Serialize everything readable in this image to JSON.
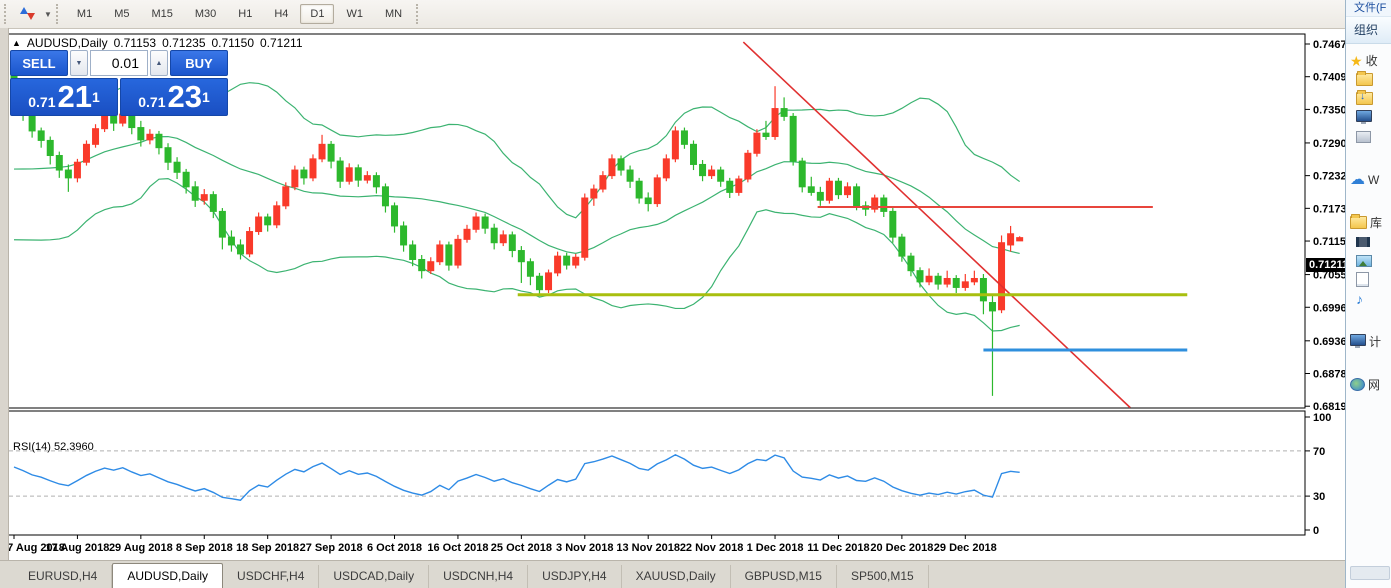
{
  "toolbar": {
    "timeframes": [
      "M1",
      "M5",
      "M15",
      "M30",
      "H1",
      "H4",
      "D1",
      "W1",
      "MN"
    ],
    "active_timeframe": "D1",
    "icon": "order-arrows-icon"
  },
  "chart_title": {
    "marker": "▲",
    "symbol": "AUDUSD,Daily",
    "open": "0.71153",
    "high": "0.71235",
    "low": "0.71150",
    "close": "0.71211"
  },
  "trade_panel": {
    "sell_label": "SELL",
    "buy_label": "BUY",
    "volume": "0.01",
    "sell_price": {
      "prefix": "0.71",
      "big": "21",
      "sup": "1"
    },
    "buy_price": {
      "prefix": "0.71",
      "big": "23",
      "sup": "1"
    }
  },
  "indicator_label": "RSI(14) 52.3960",
  "current_price_label": "0.71211",
  "tabs": [
    {
      "label": "EURUSD,H4",
      "active": false
    },
    {
      "label": "AUDUSD,Daily",
      "active": true
    },
    {
      "label": "USDCHF,H4",
      "active": false
    },
    {
      "label": "USDCAD,Daily",
      "active": false
    },
    {
      "label": "USDCNH,H4",
      "active": false
    },
    {
      "label": "USDJPY,H4",
      "active": false
    },
    {
      "label": "XAUUSD,Daily",
      "active": false
    },
    {
      "label": "GBPUSD,M15",
      "active": false
    },
    {
      "label": "SP500,M15",
      "active": false
    }
  ],
  "explorer": {
    "menu_label": "文件(F",
    "toolbar_label": "组织",
    "sections": [
      {
        "items": [
          {
            "icon": "star",
            "label": "收"
          },
          {
            "icon": "folder",
            "label": "",
            "sub": true
          },
          {
            "icon": "folder-download",
            "label": "",
            "sub": true
          },
          {
            "icon": "monitor",
            "label": "",
            "sub": true
          },
          {
            "icon": "recent",
            "label": "",
            "sub": true
          }
        ]
      },
      {
        "items": [
          {
            "icon": "cloud",
            "label": "W"
          }
        ]
      },
      {
        "items": [
          {
            "icon": "folder",
            "label": "库"
          },
          {
            "icon": "film",
            "label": "",
            "sub": true
          },
          {
            "icon": "picture",
            "label": "",
            "sub": true
          },
          {
            "icon": "document",
            "label": "",
            "sub": true
          },
          {
            "icon": "music",
            "label": "",
            "sub": true
          }
        ]
      },
      {
        "items": [
          {
            "icon": "computer",
            "label": "计"
          }
        ]
      },
      {
        "items": [
          {
            "icon": "network",
            "label": "网"
          }
        ]
      }
    ]
  },
  "chart_data": {
    "type": "candlestick",
    "symbol": "AUDUSD",
    "timeframe": "Daily",
    "title": "AUDUSD,Daily",
    "grid": false,
    "price_ticks": [
      "0.74675",
      "0.74090",
      "0.73505",
      "0.72905",
      "0.72320",
      "0.71735",
      "0.71150",
      "0.70550",
      "0.69965",
      "0.69365",
      "0.68780",
      "0.68195"
    ],
    "rsi_ticks": [
      "100",
      "70",
      "30",
      "0"
    ],
    "date_labels": [
      {
        "label": "7 Aug 2018",
        "bar": 0
      },
      {
        "label": "17 Aug 2018",
        "bar": 7
      },
      {
        "label": "29 Aug 2018",
        "bar": 14
      },
      {
        "label": "8 Sep 2018",
        "bar": 21
      },
      {
        "label": "18 Sep 2018",
        "bar": 28
      },
      {
        "label": "27 Sep 2018",
        "bar": 35
      },
      {
        "label": "6 Oct 2018",
        "bar": 42
      },
      {
        "label": "16 Oct 2018",
        "bar": 49
      },
      {
        "label": "25 Oct 2018",
        "bar": 56
      },
      {
        "label": "3 Nov 2018",
        "bar": 63
      },
      {
        "label": "13 Nov 2018",
        "bar": 70
      },
      {
        "label": "22 Nov 2018",
        "bar": 77
      },
      {
        "label": "1 Dec 2018",
        "bar": 84
      },
      {
        "label": "11 Dec 2018",
        "bar": 91
      },
      {
        "label": "20 Dec 2018",
        "bar": 98
      },
      {
        "label": "29 Dec 2018",
        "bar": 105
      }
    ],
    "indicators": {
      "bollinger": {
        "period": 20,
        "deviation": 2,
        "color": "#3cb371"
      },
      "rsi": {
        "period": 14,
        "value": 52.396,
        "levels": [
          30,
          70
        ],
        "color": "#2e8be6",
        "level_color": "#b0b0b0"
      }
    },
    "colors": {
      "bull": "#f93a2a",
      "bear": "#2db82d",
      "background": "#ffffff",
      "frame": "#000000"
    },
    "objects": [
      {
        "type": "trendline",
        "x1_bar": 80.5,
        "p1": 0.7471,
        "x2_bar": 123.2,
        "p2": 0.6817,
        "color": "#e03131",
        "width": 1.6
      },
      {
        "type": "hline",
        "price": 0.7176,
        "x1_bar": 88.7,
        "x2_bar": 125.7,
        "color": "#e8453c",
        "width": 2
      },
      {
        "type": "hline",
        "price": 0.7019,
        "x1_bar": 55.6,
        "x2_bar": 129.5,
        "color": "#a8bf0f",
        "width": 3
      },
      {
        "type": "hline",
        "price": 0.692,
        "x1_bar": 107.0,
        "x2_bar": 129.5,
        "color": "#2f8fdd",
        "width": 3
      }
    ],
    "pre_closes": [
      0.734,
      0.731,
      0.728,
      0.725,
      0.722,
      0.719,
      0.716,
      0.715,
      0.717,
      0.72,
      0.723,
      0.726,
      0.724,
      0.721,
      0.718,
      0.721,
      0.725,
      0.73,
      0.736
    ],
    "bars": [
      [
        0.7412,
        0.743,
        0.7356,
        0.7366
      ],
      [
        0.7366,
        0.7378,
        0.733,
        0.7342
      ],
      [
        0.7342,
        0.7352,
        0.73,
        0.7312
      ],
      [
        0.7312,
        0.7318,
        0.7282,
        0.7295
      ],
      [
        0.7295,
        0.7302,
        0.7252,
        0.7268
      ],
      [
        0.7268,
        0.7275,
        0.7228,
        0.7242
      ],
      [
        0.7242,
        0.7252,
        0.7203,
        0.7228
      ],
      [
        0.7228,
        0.7262,
        0.722,
        0.7256
      ],
      [
        0.7256,
        0.7295,
        0.725,
        0.7288
      ],
      [
        0.7288,
        0.7324,
        0.7282,
        0.7316
      ],
      [
        0.7316,
        0.7348,
        0.731,
        0.7338
      ],
      [
        0.7338,
        0.7346,
        0.7312,
        0.7326
      ],
      [
        0.7326,
        0.7356,
        0.732,
        0.7342
      ],
      [
        0.7342,
        0.7348,
        0.7306,
        0.7318
      ],
      [
        0.7318,
        0.733,
        0.7284,
        0.7296
      ],
      [
        0.7296,
        0.7315,
        0.7288,
        0.7306
      ],
      [
        0.7306,
        0.7312,
        0.727,
        0.7282
      ],
      [
        0.7282,
        0.729,
        0.7242,
        0.7256
      ],
      [
        0.7256,
        0.7265,
        0.7226,
        0.7238
      ],
      [
        0.7238,
        0.7244,
        0.72,
        0.7212
      ],
      [
        0.7212,
        0.7222,
        0.7176,
        0.7188
      ],
      [
        0.7188,
        0.7208,
        0.718,
        0.7198
      ],
      [
        0.7198,
        0.7204,
        0.7156,
        0.7168
      ],
      [
        0.7168,
        0.7174,
        0.71,
        0.7122
      ],
      [
        0.7122,
        0.7134,
        0.7096,
        0.7108
      ],
      [
        0.7108,
        0.7118,
        0.7082,
        0.7092
      ],
      [
        0.7092,
        0.714,
        0.7086,
        0.7132
      ],
      [
        0.7132,
        0.7166,
        0.7126,
        0.7158
      ],
      [
        0.7158,
        0.7164,
        0.7132,
        0.7144
      ],
      [
        0.7144,
        0.7186,
        0.7138,
        0.7178
      ],
      [
        0.7178,
        0.722,
        0.7172,
        0.7212
      ],
      [
        0.7212,
        0.725,
        0.7206,
        0.7242
      ],
      [
        0.7242,
        0.7248,
        0.7216,
        0.7228
      ],
      [
        0.7228,
        0.727,
        0.7222,
        0.7262
      ],
      [
        0.7262,
        0.7305,
        0.7256,
        0.7288
      ],
      [
        0.7288,
        0.7294,
        0.7245,
        0.7258
      ],
      [
        0.7258,
        0.7265,
        0.721,
        0.7222
      ],
      [
        0.7222,
        0.7254,
        0.7216,
        0.7246
      ],
      [
        0.7246,
        0.7252,
        0.7212,
        0.7224
      ],
      [
        0.7224,
        0.724,
        0.7218,
        0.7232
      ],
      [
        0.7232,
        0.7238,
        0.72,
        0.7212
      ],
      [
        0.7212,
        0.7218,
        0.7166,
        0.7178
      ],
      [
        0.7178,
        0.7184,
        0.713,
        0.7142
      ],
      [
        0.7142,
        0.715,
        0.7096,
        0.7108
      ],
      [
        0.7108,
        0.7116,
        0.707,
        0.7082
      ],
      [
        0.7082,
        0.709,
        0.7048,
        0.7062
      ],
      [
        0.7062,
        0.7086,
        0.7056,
        0.7078
      ],
      [
        0.7078,
        0.7116,
        0.7072,
        0.7108
      ],
      [
        0.7108,
        0.7114,
        0.7062,
        0.7072
      ],
      [
        0.7072,
        0.7126,
        0.7066,
        0.7118
      ],
      [
        0.7118,
        0.7144,
        0.7112,
        0.7136
      ],
      [
        0.7136,
        0.7166,
        0.713,
        0.7158
      ],
      [
        0.7158,
        0.7164,
        0.7128,
        0.7138
      ],
      [
        0.7138,
        0.7146,
        0.71,
        0.7112
      ],
      [
        0.7112,
        0.7134,
        0.7106,
        0.7126
      ],
      [
        0.7126,
        0.7132,
        0.7086,
        0.7098
      ],
      [
        0.7098,
        0.7106,
        0.704,
        0.7078
      ],
      [
        0.7078,
        0.7084,
        0.7036,
        0.7052
      ],
      [
        0.7052,
        0.7058,
        0.702,
        0.7028
      ],
      [
        0.7028,
        0.7064,
        0.7022,
        0.7058
      ],
      [
        0.7058,
        0.7096,
        0.7052,
        0.7088
      ],
      [
        0.7088,
        0.7094,
        0.7064,
        0.7072
      ],
      [
        0.7072,
        0.7092,
        0.7066,
        0.7086
      ],
      [
        0.7086,
        0.72,
        0.708,
        0.7192
      ],
      [
        0.7192,
        0.7216,
        0.7178,
        0.7208
      ],
      [
        0.7208,
        0.724,
        0.7202,
        0.7232
      ],
      [
        0.7232,
        0.727,
        0.7226,
        0.7262
      ],
      [
        0.7262,
        0.7268,
        0.7232,
        0.7242
      ],
      [
        0.7242,
        0.725,
        0.721,
        0.7222
      ],
      [
        0.7222,
        0.7228,
        0.7182,
        0.7192
      ],
      [
        0.7192,
        0.7202,
        0.7168,
        0.7182
      ],
      [
        0.7182,
        0.7234,
        0.7176,
        0.7228
      ],
      [
        0.7228,
        0.727,
        0.7222,
        0.7262
      ],
      [
        0.7262,
        0.732,
        0.7256,
        0.7312
      ],
      [
        0.7312,
        0.7318,
        0.728,
        0.7288
      ],
      [
        0.7288,
        0.7295,
        0.7242,
        0.7252
      ],
      [
        0.7252,
        0.726,
        0.7222,
        0.7232
      ],
      [
        0.7232,
        0.725,
        0.7226,
        0.7242
      ],
      [
        0.7242,
        0.7248,
        0.7212,
        0.7222
      ],
      [
        0.7222,
        0.7228,
        0.7192,
        0.7202
      ],
      [
        0.7202,
        0.7232,
        0.7196,
        0.7226
      ],
      [
        0.7226,
        0.7278,
        0.722,
        0.7272
      ],
      [
        0.7272,
        0.7315,
        0.7266,
        0.7308
      ],
      [
        0.7308,
        0.733,
        0.7296,
        0.7302
      ],
      [
        0.7302,
        0.7392,
        0.7296,
        0.7352
      ],
      [
        0.7352,
        0.7372,
        0.733,
        0.7338
      ],
      [
        0.7338,
        0.7344,
        0.725,
        0.7258
      ],
      [
        0.7258,
        0.7264,
        0.7202,
        0.7212
      ],
      [
        0.7212,
        0.723,
        0.7196,
        0.7202
      ],
      [
        0.7202,
        0.7212,
        0.7178,
        0.7188
      ],
      [
        0.7188,
        0.7228,
        0.7182,
        0.7222
      ],
      [
        0.7222,
        0.7228,
        0.719,
        0.7198
      ],
      [
        0.7198,
        0.722,
        0.7192,
        0.7212
      ],
      [
        0.7212,
        0.7218,
        0.717,
        0.7178
      ],
      [
        0.7178,
        0.7186,
        0.716,
        0.7172
      ],
      [
        0.7172,
        0.7198,
        0.7166,
        0.7192
      ],
      [
        0.7192,
        0.7198,
        0.7158,
        0.7168
      ],
      [
        0.7168,
        0.7174,
        0.7112,
        0.7122
      ],
      [
        0.7122,
        0.7128,
        0.7078,
        0.7088
      ],
      [
        0.7088,
        0.7094,
        0.7052,
        0.7062
      ],
      [
        0.7062,
        0.7068,
        0.7032,
        0.7042
      ],
      [
        0.7042,
        0.7066,
        0.7036,
        0.7052
      ],
      [
        0.7052,
        0.7058,
        0.7028,
        0.7038
      ],
      [
        0.7038,
        0.7062,
        0.7032,
        0.7048
      ],
      [
        0.7048,
        0.7054,
        0.7022,
        0.7032
      ],
      [
        0.7032,
        0.7056,
        0.7026,
        0.7042
      ],
      [
        0.7042,
        0.7062,
        0.7036,
        0.7048
      ],
      [
        0.7048,
        0.7056,
        0.6984,
        0.7008
      ],
      [
        0.7005,
        0.7018,
        0.6838,
        0.699
      ],
      [
        0.6992,
        0.7125,
        0.6986,
        0.7112
      ],
      [
        0.7108,
        0.7142,
        0.7096,
        0.7128
      ],
      [
        0.71153,
        0.71235,
        0.7115,
        0.71211
      ]
    ]
  }
}
